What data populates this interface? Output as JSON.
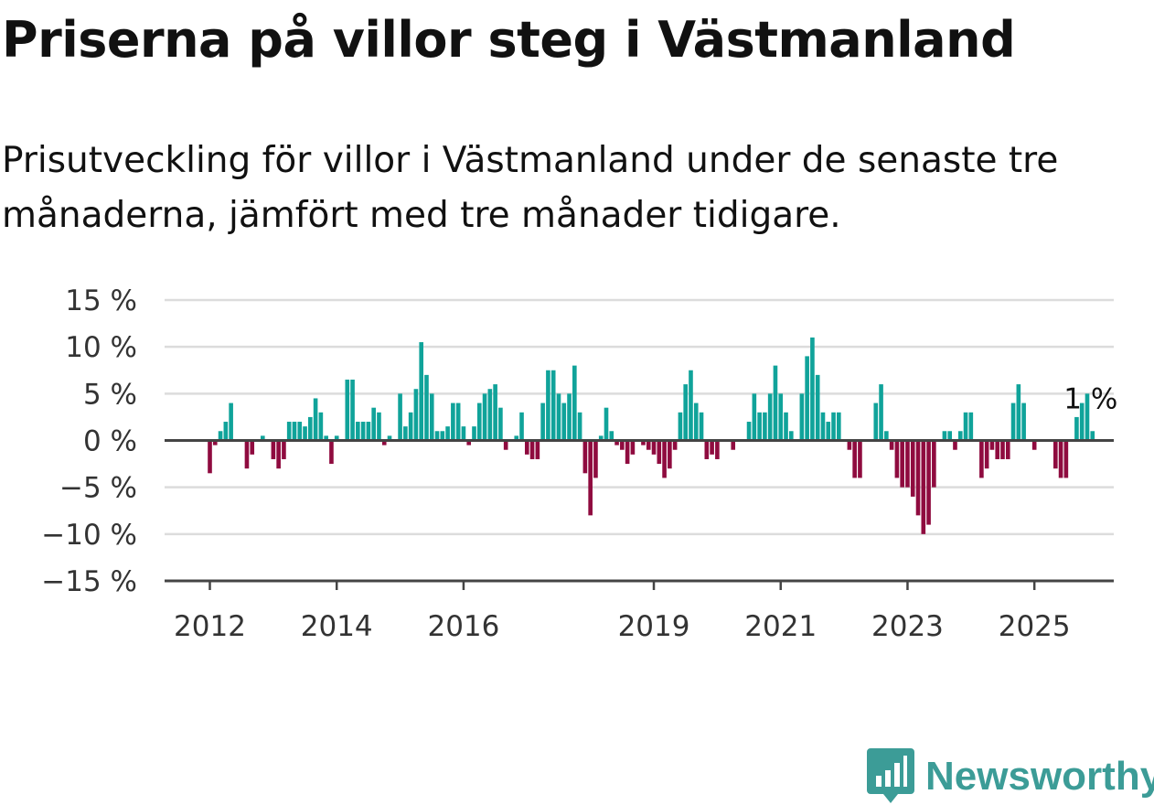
{
  "title": "Priserna på villor steg i Västmanland",
  "subtitle": "Prisutveckling för villor i Västmanland under de senaste tre månaderna, jämfört med tre månader tidigare.",
  "brand": {
    "name": "Newsworthy",
    "icon": "newsworthy-logo-icon",
    "color": "#3c9c97"
  },
  "chart_data": {
    "type": "bar",
    "y_axis": {
      "range": [
        -15,
        15
      ],
      "ticks": [
        15,
        10,
        5,
        0,
        -5,
        -10,
        -15
      ],
      "tick_labels": [
        "15 %",
        "10 %",
        "5 %",
        "0 %",
        "−5 %",
        "−10 %",
        "−15 %"
      ],
      "grid": true
    },
    "x_axis": {
      "tick_labels": [
        "2012",
        "2014",
        "2016",
        "2019",
        "2021",
        "2023",
        "2025"
      ],
      "tick_dates": [
        "2012-01",
        "2014-01",
        "2016-01",
        "2019-01",
        "2021-01",
        "2023-01",
        "2025-01"
      ]
    },
    "first_month": "2012-01",
    "values": [
      -3.5,
      -0.5,
      1,
      2,
      4,
      0,
      0,
      -3,
      -1.5,
      0,
      0.5,
      0,
      -2,
      -3,
      -2,
      2,
      2,
      2,
      1.5,
      2.5,
      4.5,
      3,
      0.5,
      -2.5,
      0.5,
      0,
      6.5,
      6.5,
      2,
      2,
      2,
      3.5,
      3,
      -0.5,
      0.5,
      0,
      5,
      1.5,
      3,
      5.5,
      10.5,
      7,
      5,
      1,
      1,
      1.5,
      4,
      4,
      1.5,
      -0.5,
      1.5,
      4,
      5,
      5.5,
      6,
      3.5,
      -1,
      0,
      0.5,
      3,
      -1.5,
      -2,
      -2,
      4,
      7.5,
      7.5,
      5,
      4,
      5,
      8,
      3,
      -3.5,
      -8,
      -4,
      0.5,
      3.5,
      1,
      -0.5,
      -1,
      -2.5,
      -1.5,
      0,
      -0.5,
      -1,
      -1.5,
      -2.5,
      -4,
      -3,
      -1,
      3,
      6,
      7.5,
      4,
      3,
      -2,
      -1.5,
      -2,
      0,
      0,
      -1,
      0,
      0,
      2,
      5,
      3,
      3,
      5,
      8,
      5,
      3,
      1,
      0,
      5,
      9,
      11,
      7,
      3,
      2,
      3,
      3,
      0,
      -1,
      -4,
      -4,
      0,
      0,
      4,
      6,
      1,
      -1,
      -4,
      -5,
      -5,
      -6,
      -8,
      -10,
      -9,
      -5,
      0,
      1,
      1,
      -1,
      1,
      3,
      3,
      0,
      -4,
      -3,
      -1,
      -2,
      -2,
      -2,
      4,
      6,
      4,
      0,
      -1,
      0,
      0,
      0,
      -3,
      -4,
      -4,
      0,
      2.5,
      4,
      5,
      1
    ],
    "positive_color": "#10a39a",
    "negative_color": "#8f0b3f",
    "annotation": {
      "text": "1 %"
    }
  }
}
